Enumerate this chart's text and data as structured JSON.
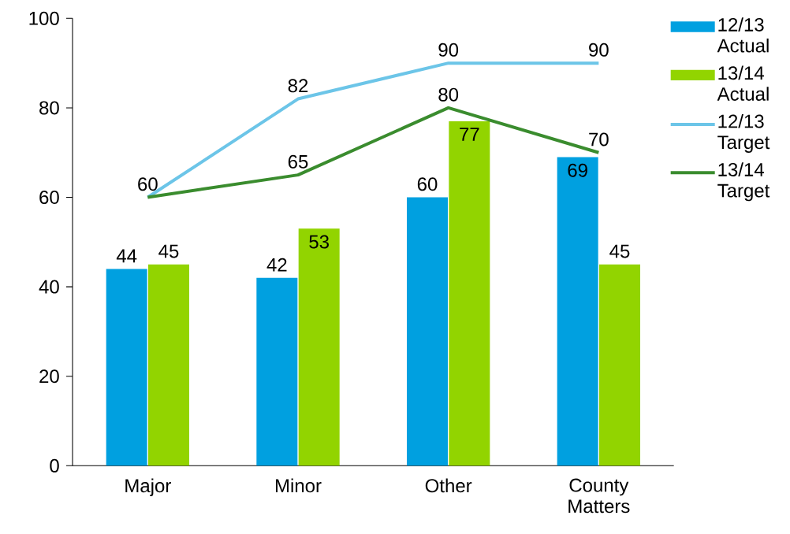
{
  "chart_data": {
    "type": "bar",
    "categories": [
      "Major",
      "Minor",
      "Other",
      "County Matters"
    ],
    "series": [
      {
        "name": "12/13 Actual",
        "color": "#00a0e0",
        "values": [
          44,
          42,
          60,
          69
        ],
        "value_labels": [
          "44",
          "42",
          "60",
          "69"
        ]
      },
      {
        "name": "13/14 Actual",
        "color": "#92d400",
        "values": [
          45,
          53,
          77,
          45
        ],
        "value_labels": [
          "45",
          "53",
          "77",
          "45"
        ]
      },
      {
        "name": "12/13 Target",
        "type": "line",
        "color": "#6cc5e8",
        "values": [
          60,
          82,
          90,
          90
        ],
        "value_labels": [
          null,
          "82",
          "90",
          "90"
        ]
      },
      {
        "name": "13/14 Target",
        "type": "line",
        "color": "#3a8c2e",
        "values": [
          60,
          65,
          80,
          70
        ],
        "value_labels": [
          "60",
          "65",
          "80",
          "70"
        ]
      }
    ],
    "ylim": [
      0,
      100
    ],
    "yticks": [
      0,
      20,
      40,
      60,
      80,
      100
    ],
    "legend": "right",
    "grid": false,
    "marker": "none"
  }
}
